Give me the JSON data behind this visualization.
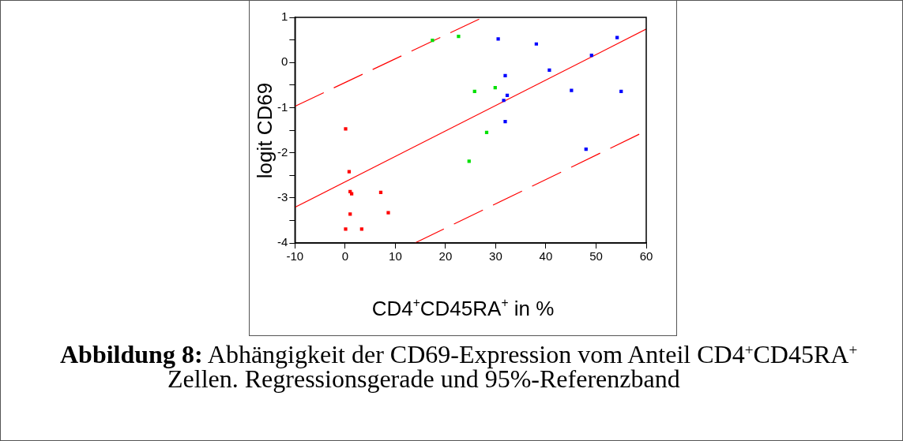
{
  "chart_data": {
    "type": "scatter",
    "title": "Abbildung 8:",
    "subtitle": "Abhängigkeit der CD69-Expression vom Anteil CD4$^{+}$CD45RA$^{+}$ Zellen. Regressionsgerade und 95%-Referenzband",
    "xlabel": "CD4$^{+}$CD45RA$^{+}$ in %",
    "ylabel": "logit CD69",
    "xlim": [
      -10,
      60
    ],
    "xticks": [
      -10,
      0,
      10,
      20,
      30,
      40,
      50,
      60
    ],
    "ylim": [
      -4,
      1
    ],
    "yticks": [
      1,
      {
        "value": 0.5,
        "label": null
      },
      0,
      {
        "value": -0.5,
        "label": null
      },
      -1,
      {
        "value": -1.5,
        "label": null
      },
      -2,
      {
        "value": -2.5,
        "label": null
      },
      -3,
      {
        "value": -3.5,
        "label": null
      },
      -4
    ],
    "grid": false,
    "legend": false,
    "marker": "square",
    "series": [
      {
        "color": "#ff0000",
        "x": [
          0.1,
          0.8,
          1.0,
          1.3,
          7.1,
          1.0,
          8.6,
          0.1,
          3.3
        ],
        "values": [
          -1.47,
          -2.42,
          -2.86,
          -2.91,
          -2.88,
          -3.36,
          -3.33,
          -3.69,
          -3.69
        ]
      },
      {
        "color": "#00e000",
        "x": [
          17.4,
          22.6,
          25.8,
          29.9,
          28.2,
          24.7
        ],
        "values": [
          0.49,
          0.58,
          -0.64,
          -0.56,
          -1.55,
          -2.19
        ]
      },
      {
        "color": "#0000ff",
        "x": [
          30.5,
          38.1,
          31.9,
          32.3,
          31.6,
          31.9,
          40.7,
          49.1,
          54.2,
          45.1,
          55.0,
          48.0
        ],
        "values": [
          0.52,
          0.41,
          -0.29,
          -0.73,
          -0.84,
          -1.31,
          -0.17,
          0.16,
          0.55,
          -0.62,
          -0.64,
          -1.92
        ]
      },
      {
        "type": "line",
        "color": "#ff0000",
        "marker": "none",
        "line_style": "solid",
        "x": [
          -10,
          60
        ],
        "values": [
          -3.21,
          0.74
        ]
      },
      {
        "type": "line",
        "color": "#ff0000",
        "marker": "none",
        "line_style": "dashed",
        "x": [
          -10,
          26.7
        ],
        "values": [
          -0.97,
          0.96
        ]
      },
      {
        "type": "line",
        "color": "#ff0000",
        "marker": "none",
        "line_style": "dashed",
        "x": [
          13.9,
          58.6
        ],
        "values": [
          -4.0,
          -1.59
        ]
      }
    ]
  }
}
